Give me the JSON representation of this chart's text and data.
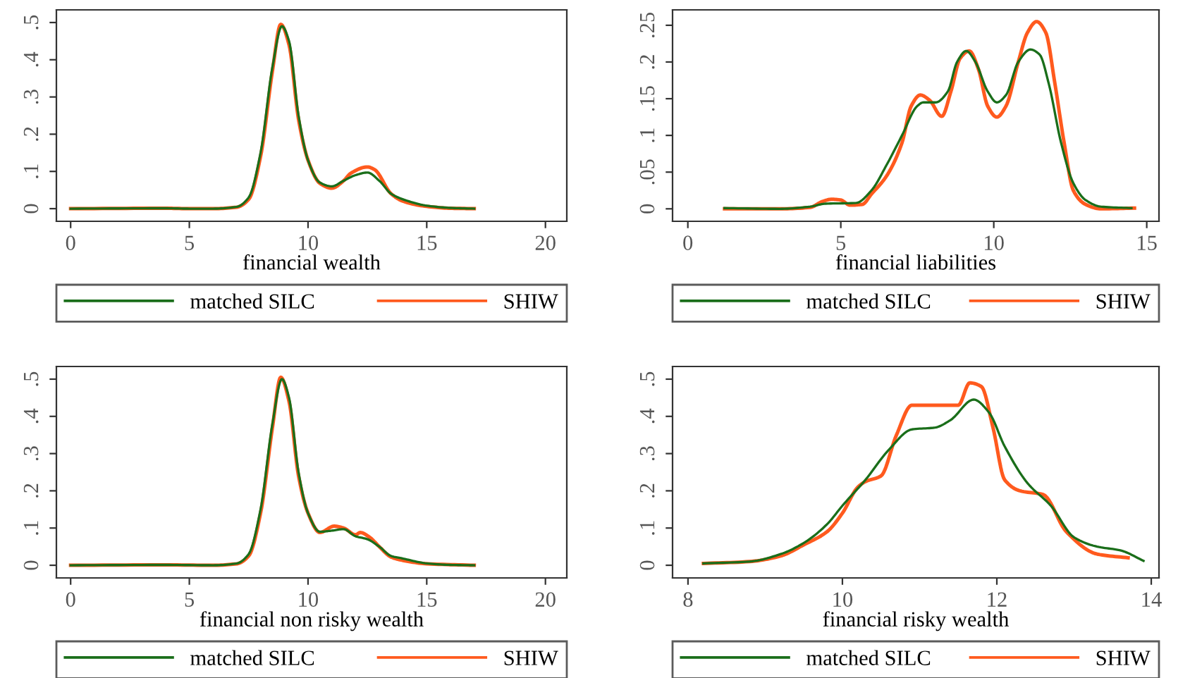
{
  "chart_data": [
    {
      "type": "line",
      "xlabel": "financial wealth",
      "xlim": [
        -0.6,
        20.9
      ],
      "xticks": [
        0,
        5,
        10,
        15,
        20
      ],
      "ylim": [
        -0.034,
        0.534
      ],
      "yticks": [
        0,
        {
          "value": 0.1,
          "label": ".1"
        },
        {
          "value": 0.2,
          "label": ".2"
        },
        {
          "value": 0.3,
          "label": ".3"
        },
        {
          "value": 0.4,
          "label": ".4"
        },
        {
          "value": 0.5,
          "label": ".5"
        }
      ],
      "grid": false,
      "legend": "bottom",
      "marker": "none",
      "line_style": "solid",
      "series": [
        {
          "name": "matched SILC",
          "color": "#1a6e1a",
          "x": [
            0,
            4,
            5,
            6,
            7,
            7.5,
            8,
            8.5,
            8.9,
            9.2,
            9.6,
            10,
            10.5,
            11,
            11.5,
            12,
            12.5,
            13,
            13.5,
            14,
            15,
            16,
            17
          ],
          "values": [
            0,
            0.001,
            0,
            0,
            0.005,
            0.03,
            0.15,
            0.38,
            0.49,
            0.45,
            0.25,
            0.13,
            0.07,
            0.06,
            0.075,
            0.09,
            0.097,
            0.075,
            0.04,
            0.025,
            0.008,
            0.002,
            0
          ]
        },
        {
          "name": "SHIW",
          "color": "#ff5a1e",
          "x": [
            0,
            4,
            5,
            6,
            7,
            7.5,
            8,
            8.5,
            8.85,
            9.2,
            9.6,
            10,
            10.5,
            11,
            11.5,
            11.8,
            12.5,
            12.8,
            13.5,
            14,
            15,
            16,
            17
          ],
          "values": [
            0,
            0.001,
            0,
            0,
            0.004,
            0.025,
            0.14,
            0.37,
            0.495,
            0.44,
            0.24,
            0.13,
            0.068,
            0.055,
            0.075,
            0.095,
            0.112,
            0.105,
            0.04,
            0.02,
            0.006,
            0.001,
            0
          ]
        }
      ]
    },
    {
      "type": "line",
      "xlabel": "financial liabilities",
      "xlim": [
        -0.5,
        15.4
      ],
      "xticks": [
        0,
        5,
        10,
        15
      ],
      "ylim": [
        -0.017,
        0.271
      ],
      "yticks": [
        0,
        {
          "value": 0.05,
          "label": ".05"
        },
        {
          "value": 0.1,
          "label": ".1"
        },
        {
          "value": 0.15,
          "label": ".15"
        },
        {
          "value": 0.2,
          "label": ".2"
        },
        {
          "value": 0.25,
          "label": ".25"
        }
      ],
      "grid": false,
      "legend": "bottom",
      "marker": "none",
      "line_style": "solid",
      "series": [
        {
          "name": "matched SILC",
          "color": "#1a6e1a",
          "x": [
            1.2,
            3,
            4,
            4.5,
            5.5,
            6,
            6.5,
            7,
            7.5,
            7.7,
            8.1,
            8.5,
            8.8,
            9.1,
            9.4,
            9.8,
            10.1,
            10.4,
            10.8,
            11.2,
            11.5,
            11.8,
            12.2,
            12.6,
            13,
            13.5,
            14.5
          ],
          "values": [
            0.001,
            0,
            0.003,
            0.007,
            0.008,
            0.025,
            0.06,
            0.1,
            0.14,
            0.145,
            0.145,
            0.16,
            0.2,
            0.215,
            0.2,
            0.16,
            0.145,
            0.155,
            0.2,
            0.217,
            0.21,
            0.17,
            0.09,
            0.035,
            0.012,
            0.003,
            0.001
          ]
        },
        {
          "name": "SHIW",
          "color": "#ff5a1e",
          "x": [
            1.2,
            3,
            4,
            4.4,
            4.7,
            5,
            5.3,
            5.7,
            6,
            6.5,
            7,
            7.3,
            7.6,
            7.9,
            8.3,
            8.6,
            8.9,
            9.2,
            9.5,
            9.8,
            10.1,
            10.4,
            10.8,
            11.1,
            11.4,
            11.7,
            12,
            12.3,
            12.6,
            13,
            13.5,
            14.6
          ],
          "values": [
            0,
            0,
            0.002,
            0.01,
            0.013,
            0.012,
            0.005,
            0.006,
            0.02,
            0.045,
            0.09,
            0.14,
            0.155,
            0.148,
            0.126,
            0.16,
            0.205,
            0.215,
            0.19,
            0.14,
            0.125,
            0.14,
            0.2,
            0.24,
            0.255,
            0.24,
            0.17,
            0.09,
            0.025,
            0.006,
            0,
            0.001
          ]
        }
      ]
    },
    {
      "type": "line",
      "xlabel": "financial non risky wealth",
      "xlim": [
        -0.6,
        20.9
      ],
      "xticks": [
        0,
        5,
        10,
        15,
        20
      ],
      "ylim": [
        -0.034,
        0.534
      ],
      "yticks": [
        0,
        {
          "value": 0.1,
          "label": ".1"
        },
        {
          "value": 0.2,
          "label": ".2"
        },
        {
          "value": 0.3,
          "label": ".3"
        },
        {
          "value": 0.4,
          "label": ".4"
        },
        {
          "value": 0.5,
          "label": ".5"
        }
      ],
      "grid": false,
      "legend": "bottom",
      "marker": "none",
      "line_style": "solid",
      "series": [
        {
          "name": "matched SILC",
          "color": "#1a6e1a",
          "x": [
            0,
            4,
            6,
            7,
            7.5,
            8,
            8.5,
            8.9,
            9.2,
            9.6,
            10,
            10.5,
            11,
            11.5,
            12,
            12.5,
            13,
            13.5,
            14,
            15,
            16,
            17
          ],
          "values": [
            0,
            0.001,
            0,
            0.005,
            0.03,
            0.15,
            0.38,
            0.5,
            0.45,
            0.25,
            0.14,
            0.09,
            0.093,
            0.097,
            0.078,
            0.07,
            0.05,
            0.025,
            0.018,
            0.005,
            0.001,
            0
          ]
        },
        {
          "name": "SHIW",
          "color": "#ff5a1e",
          "x": [
            0,
            4,
            6,
            7,
            7.5,
            8,
            8.5,
            8.85,
            9.2,
            9.6,
            10,
            10.5,
            11.1,
            11.5,
            12,
            12.2,
            12.6,
            13,
            13.5,
            14,
            15,
            17
          ],
          "values": [
            0,
            0.001,
            0,
            0.004,
            0.025,
            0.14,
            0.37,
            0.505,
            0.44,
            0.24,
            0.14,
            0.088,
            0.105,
            0.1,
            0.082,
            0.088,
            0.075,
            0.05,
            0.022,
            0.013,
            0.004,
            0
          ]
        }
      ]
    },
    {
      "type": "line",
      "xlabel": "financial risky wealth",
      "xlim": [
        7.8,
        14.1
      ],
      "xticks": [
        8,
        10,
        12,
        14
      ],
      "ylim": [
        -0.034,
        0.534
      ],
      "yticks": [
        0,
        {
          "value": 0.1,
          "label": ".1"
        },
        {
          "value": 0.2,
          "label": ".2"
        },
        {
          "value": 0.3,
          "label": ".3"
        },
        {
          "value": 0.4,
          "label": ".4"
        },
        {
          "value": 0.5,
          "label": ".5"
        }
      ],
      "grid": false,
      "legend": "bottom",
      "marker": "none",
      "line_style": "solid",
      "series": [
        {
          "name": "matched SILC",
          "color": "#1a6e1a",
          "x": [
            8.2,
            8.8,
            9.2,
            9.5,
            9.8,
            10,
            10.3,
            10.6,
            10.9,
            11.2,
            11.4,
            11.7,
            11.9,
            12.1,
            12.4,
            12.7,
            13,
            13.3,
            13.6,
            13.9
          ],
          "values": [
            0.005,
            0.01,
            0.03,
            0.06,
            0.11,
            0.16,
            0.23,
            0.31,
            0.365,
            0.37,
            0.39,
            0.445,
            0.41,
            0.32,
            0.22,
            0.16,
            0.075,
            0.05,
            0.04,
            0.012
          ]
        },
        {
          "name": "SHIW",
          "color": "#ff5a1e",
          "x": [
            8.2,
            8.8,
            9.2,
            9.5,
            9.8,
            10,
            10.2,
            10.3,
            10.5,
            10.7,
            10.9,
            11.1,
            11.3,
            11.5,
            11.65,
            11.8,
            11.95,
            12.1,
            12.3,
            12.6,
            12.9,
            13.3,
            13.7
          ],
          "values": [
            0.005,
            0.01,
            0.025,
            0.055,
            0.09,
            0.14,
            0.21,
            0.225,
            0.24,
            0.35,
            0.43,
            0.43,
            0.43,
            0.43,
            0.49,
            0.48,
            0.37,
            0.23,
            0.2,
            0.19,
            0.09,
            0.03,
            0.02
          ]
        }
      ]
    }
  ]
}
